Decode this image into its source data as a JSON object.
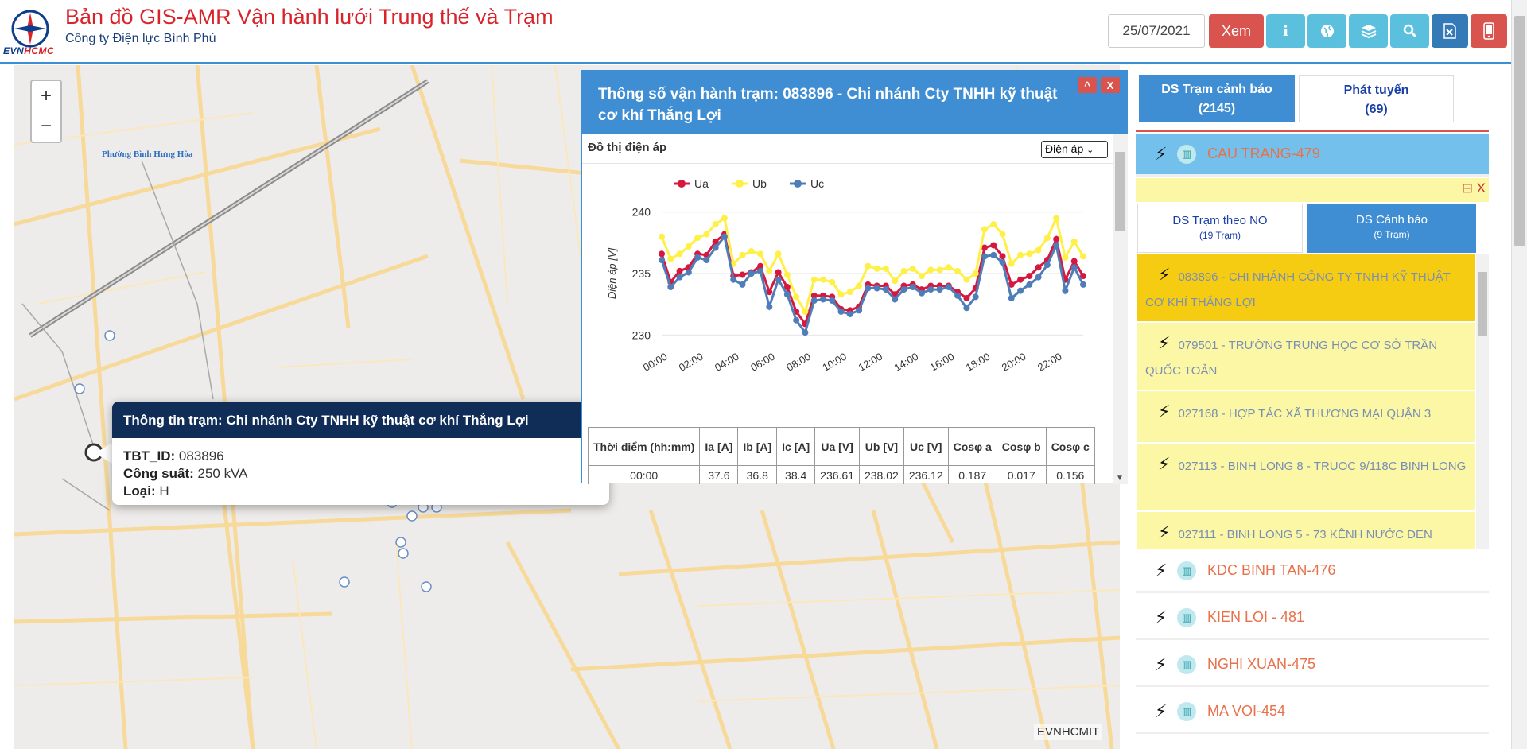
{
  "header": {
    "logo_text_a": "EVN",
    "logo_text_b": "HCMC",
    "title": "Bản đồ GIS-AMR Vận hành lưới Trung thế và Trạm",
    "subtitle": "Công ty Điện lực Bình Phú",
    "date": "25/07/2021",
    "xem_label": "Xem",
    "icons": [
      "info-icon",
      "globe-icon",
      "layers-icon",
      "search-icon",
      "excel-icon",
      "phone-icon"
    ],
    "colors": {
      "title": "#d8232a",
      "xem": "#d9534f",
      "info": "#5bc0de",
      "excel": "#337ab7"
    }
  },
  "map": {
    "zoom_in": "+",
    "zoom_out": "−",
    "place_label": "Phường Bình Hưng Hòa",
    "attribution": "EVNHCMIT"
  },
  "info_popup": {
    "title": "Thông tin trạm: Chi nhánh Cty TNHH kỹ thuật cơ khí Thắng Lợi",
    "rows": [
      {
        "key": "TBT_ID:",
        "value": "083896"
      },
      {
        "key": "Công suất:",
        "value": "250 kVA"
      },
      {
        "key": "Loại:",
        "value": "H"
      }
    ]
  },
  "chart_window": {
    "title": "Thông số vận hành trạm: 083896 - Chi nhánh Cty TNHH kỹ thuật cơ khí Thắng Lợi",
    "up_label": "^",
    "close_label": "X",
    "chart_title": "Đồ thị điện áp",
    "select_value": "Điện áp",
    "table": {
      "headers": [
        "Thời điểm (hh:mm)",
        "Ia [A]",
        "Ib [A]",
        "Ic [A]",
        "Ua [V]",
        "Ub [V]",
        "Uc [V]",
        "Cosφ a",
        "Cosφ b",
        "Cosφ c"
      ],
      "row": [
        "00:00",
        "37.6",
        "36.8",
        "38.4",
        "236.61",
        "238.02",
        "236.12",
        "0.187",
        "0.017",
        "0.156"
      ]
    }
  },
  "chart_data": {
    "type": "line",
    "ylabel": "Điện áp [V]",
    "ylim": [
      229.5,
      240.5
    ],
    "yticks": [
      230,
      235,
      240
    ],
    "x_tick_labels": [
      "00:00",
      "02:00",
      "04:00",
      "06:00",
      "08:00",
      "10:00",
      "12:00",
      "14:00",
      "16:00",
      "18:00",
      "20:00",
      "22:00"
    ],
    "legend": "top-left",
    "grid": true,
    "series": [
      {
        "name": "Ua",
        "color": "#d6183f",
        "values": [
          236.6,
          234.3,
          235.2,
          235.5,
          236.6,
          236.5,
          237.6,
          238.2,
          234.8,
          234.9,
          235.1,
          235.6,
          233.5,
          235.1,
          233.9,
          231.9,
          230.9,
          233.2,
          233.2,
          233.1,
          232.1,
          232.0,
          232.3,
          234.1,
          234.0,
          234.0,
          233.3,
          234.0,
          234.1,
          233.7,
          234.0,
          234.0,
          234.0,
          233.5,
          233.0,
          233.8,
          237.1,
          237.3,
          236.4,
          234.1,
          234.5,
          234.8,
          235.5,
          236.1,
          237.8,
          234.5,
          236.0,
          234.8
        ]
      },
      {
        "name": "Ub",
        "color": "#fff047",
        "values": [
          238.0,
          236.2,
          236.6,
          237.2,
          237.9,
          238.2,
          239.0,
          239.5,
          235.8,
          236.5,
          236.8,
          236.6,
          235.2,
          236.6,
          234.9,
          233.1,
          231.9,
          234.5,
          234.5,
          234.3,
          233.3,
          233.5,
          234.0,
          235.6,
          235.4,
          235.4,
          234.4,
          235.2,
          235.4,
          234.8,
          235.3,
          235.3,
          235.5,
          235.2,
          234.5,
          235.0,
          238.6,
          239.0,
          238.2,
          235.8,
          236.5,
          236.6,
          236.9,
          237.9,
          239.5,
          236.3,
          237.6,
          236.4
        ]
      },
      {
        "name": "Uc",
        "color": "#4f7db8",
        "values": [
          236.1,
          233.9,
          234.7,
          235.1,
          236.3,
          236.1,
          237.1,
          238.0,
          234.5,
          234.1,
          235.0,
          235.2,
          232.3,
          234.5,
          233.3,
          231.2,
          230.2,
          232.8,
          232.9,
          232.8,
          231.9,
          231.7,
          232.0,
          233.8,
          233.8,
          233.7,
          232.9,
          233.7,
          233.9,
          233.4,
          233.7,
          233.7,
          233.9,
          233.2,
          232.2,
          233.1,
          236.4,
          236.5,
          235.9,
          233.0,
          233.6,
          234.1,
          234.7,
          235.7,
          237.3,
          233.6,
          235.5,
          234.1
        ]
      }
    ]
  },
  "right_panel": {
    "tab_warnings": {
      "label": "DS Trạm cảnh báo",
      "count": "(2145)"
    },
    "tab_feeders": {
      "label": "Phát tuyến",
      "count": "(69)"
    },
    "active_feeder": "CAU TRANG-479",
    "yellow_tools": "⊟ X",
    "subtab_no": {
      "label": "DS Trạm theo NO",
      "count": "(19 Trạm)"
    },
    "subtab_warn": {
      "label": "DS Cảnh báo",
      "count": "(9 Trạm)"
    },
    "no_items": [
      "083896 - CHI NHÁNH CÔNG TY TNHH KỸ THUẬT CƠ KHÍ THẮNG LỢI",
      "079501 - TRƯỜNG TRUNG HỌC CƠ SỞ TRẦN QUỐC TOẢN",
      "027168 - HỢP TÁC XÃ THƯƠNG MẠI QUẬN 3",
      "027113 - BINH LONG 8 - TRUOC 9/118C BINH LONG",
      "027111 - BINH LONG 5 - 73 KÊNH NƯỚC ĐEN"
    ],
    "feeders": [
      "KDC BINH TAN-476",
      "KIEN LOI - 481",
      "NGHI XUAN-475",
      "MA VOI-454"
    ]
  }
}
